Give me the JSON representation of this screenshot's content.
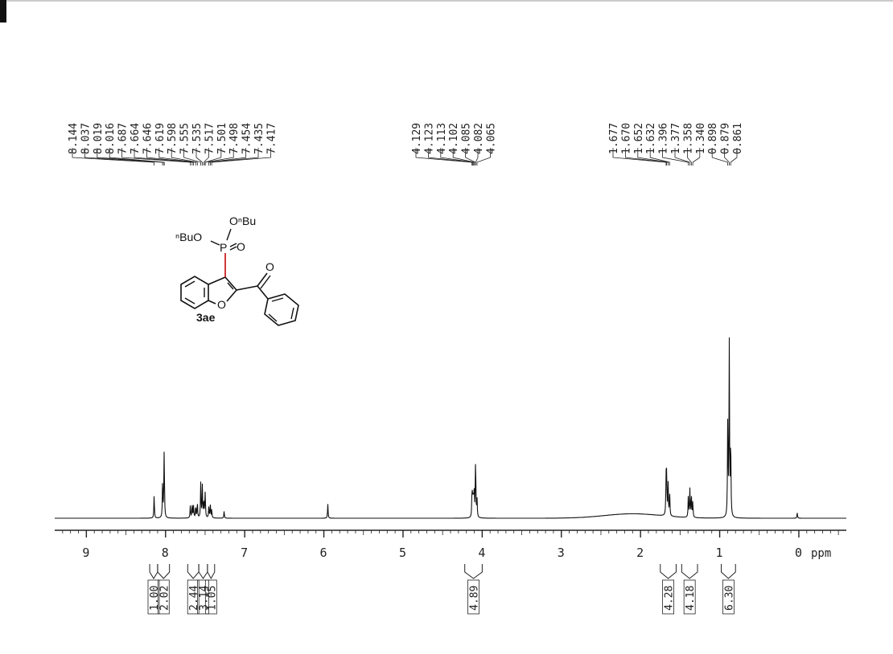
{
  "chart_data": {
    "type": "line",
    "x_unit": "ppm",
    "xlim": [
      9.4,
      -0.6
    ],
    "x_ticks": [
      "9",
      "8",
      "7",
      "6",
      "5",
      "4",
      "3",
      "2",
      "1",
      "0"
    ],
    "peak_label_groups": [
      [
        "8.144",
        "8.037",
        "8.019",
        "8.016",
        "7.687",
        "7.664",
        "7.646",
        "7.619",
        "7.598",
        "7.555",
        "7.535",
        "7.517",
        "7.501",
        "7.498",
        "7.454",
        "7.435",
        "7.417"
      ],
      [
        "4.129",
        "4.123",
        "4.113",
        "4.102",
        "4.085",
        "4.082",
        "4.065"
      ],
      [
        "1.677",
        "1.670",
        "1.652",
        "1.632",
        "1.396",
        "1.377",
        "1.358",
        "1.340",
        "0.898",
        "0.879",
        "0.861"
      ]
    ],
    "integrals": [
      {
        "from": 8.2,
        "to": 8.1,
        "value": "1.00"
      },
      {
        "from": 8.1,
        "to": 7.95,
        "value": "2.02"
      },
      {
        "from": 7.72,
        "to": 7.58,
        "value": "2.44"
      },
      {
        "from": 7.58,
        "to": 7.47,
        "value": "3.14"
      },
      {
        "from": 7.47,
        "to": 7.38,
        "value": "1.05"
      },
      {
        "from": 4.22,
        "to": 4.0,
        "value": "4.89"
      },
      {
        "from": 1.75,
        "to": 1.55,
        "value": "4.28"
      },
      {
        "from": 1.48,
        "to": 1.28,
        "value": "4.18"
      },
      {
        "from": 0.98,
        "to": 0.8,
        "value": "6.30"
      }
    ],
    "peaks": [
      {
        "ppm": 8.144,
        "h": 0.13
      },
      {
        "ppm": 8.037,
        "h": 0.2
      },
      {
        "ppm": 8.019,
        "h": 0.22
      },
      {
        "ppm": 8.016,
        "h": 0.2
      },
      {
        "ppm": 7.687,
        "h": 0.07
      },
      {
        "ppm": 7.664,
        "h": 0.08
      },
      {
        "ppm": 7.646,
        "h": 0.07
      },
      {
        "ppm": 7.619,
        "h": 0.07
      },
      {
        "ppm": 7.598,
        "h": 0.09
      },
      {
        "ppm": 7.555,
        "h": 0.2
      },
      {
        "ppm": 7.535,
        "h": 0.18
      },
      {
        "ppm": 7.517,
        "h": 0.1
      },
      {
        "ppm": 7.501,
        "h": 0.08
      },
      {
        "ppm": 7.498,
        "h": 0.08
      },
      {
        "ppm": 7.454,
        "h": 0.06
      },
      {
        "ppm": 7.435,
        "h": 0.08
      },
      {
        "ppm": 7.417,
        "h": 0.05
      },
      {
        "ppm": 7.26,
        "h": 0.04
      },
      {
        "ppm": 5.95,
        "h": 0.08
      },
      {
        "ppm": 4.129,
        "h": 0.11
      },
      {
        "ppm": 4.123,
        "h": 0.11
      },
      {
        "ppm": 4.113,
        "h": 0.12
      },
      {
        "ppm": 4.102,
        "h": 0.16
      },
      {
        "ppm": 4.085,
        "h": 0.18
      },
      {
        "ppm": 4.082,
        "h": 0.17
      },
      {
        "ppm": 4.065,
        "h": 0.1
      },
      {
        "ppm": 1.677,
        "h": 0.2
      },
      {
        "ppm": 1.67,
        "h": 0.22
      },
      {
        "ppm": 1.652,
        "h": 0.19
      },
      {
        "ppm": 1.632,
        "h": 0.13
      },
      {
        "ppm": 1.396,
        "h": 0.12
      },
      {
        "ppm": 1.377,
        "h": 0.16
      },
      {
        "ppm": 1.358,
        "h": 0.13
      },
      {
        "ppm": 1.34,
        "h": 0.09
      },
      {
        "ppm": 0.898,
        "h": 0.55
      },
      {
        "ppm": 0.879,
        "h": 1.0
      },
      {
        "ppm": 0.861,
        "h": 0.45
      },
      {
        "ppm": 0.02,
        "h": 0.03
      }
    ],
    "humps": [
      {
        "center": 2.1,
        "width": 0.5,
        "h": 0.025
      }
    ]
  },
  "molecule": {
    "label": "3ae",
    "atom_labels": {
      "o_bu_top": "OⁿBu",
      "o_bu_left": "ⁿBuO",
      "p": "P",
      "o_double": "O",
      "o_furan": "O",
      "o_carbonyl": "O"
    }
  },
  "colors": {
    "spectrum": "#111111",
    "axis": "#222222",
    "bond_highlight": "#cc2222"
  }
}
